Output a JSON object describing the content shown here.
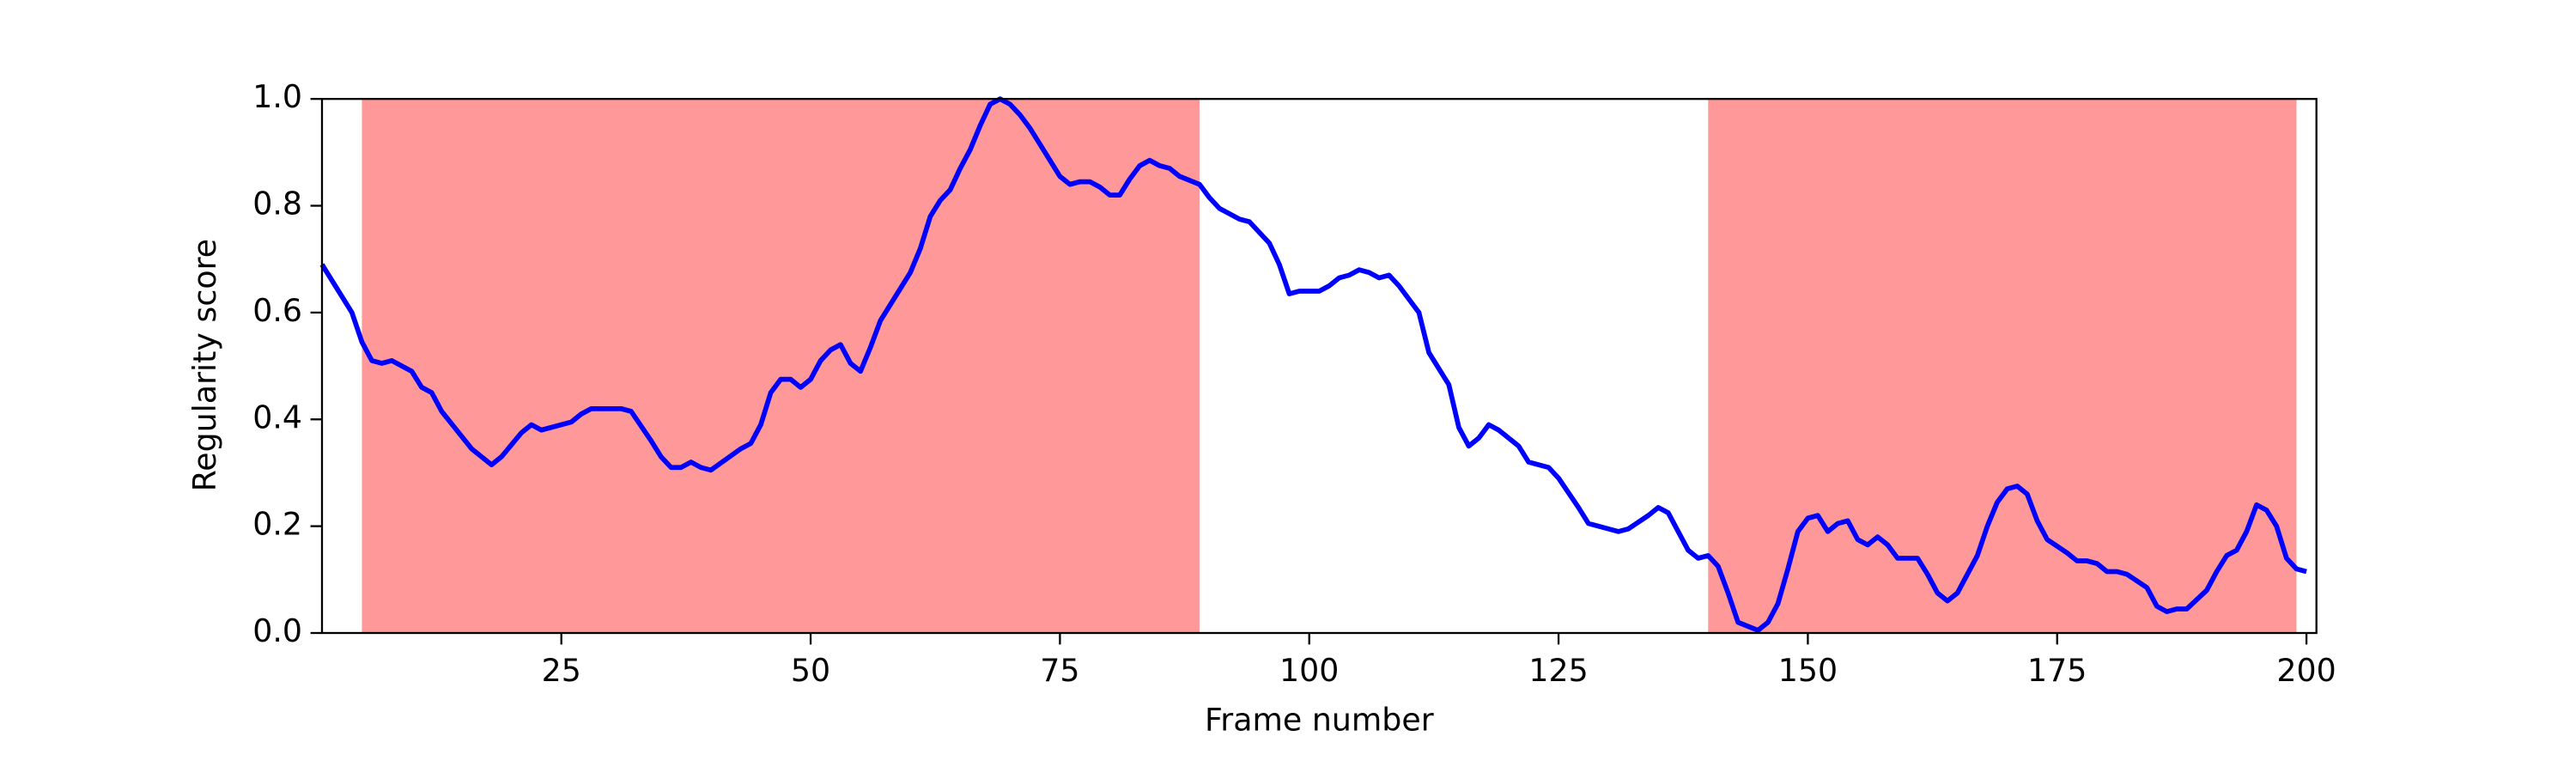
{
  "chart_data": {
    "type": "line",
    "xlabel": "Frame number",
    "ylabel": "Regularity score",
    "color": "#0000ff",
    "highlight_color": "#ff9999",
    "highlight_regions": [
      [
        5,
        89
      ],
      [
        140,
        199
      ]
    ],
    "xlim": [
      1,
      201
    ],
    "ylim": [
      0,
      1
    ],
    "xticks": [
      25,
      50,
      75,
      100,
      125,
      150,
      175,
      200
    ],
    "yticks": [
      {
        "value": 0,
        "label": "0.0"
      },
      0.2,
      0.4,
      0.6,
      0.8,
      {
        "value": 1,
        "label": "1.0"
      }
    ],
    "x": [
      1,
      4,
      5,
      6,
      7,
      8,
      10,
      11,
      12,
      13,
      16,
      18,
      19,
      21,
      22,
      23,
      26,
      27,
      28,
      30,
      31,
      32,
      34,
      35,
      36,
      37,
      38,
      39,
      40,
      43,
      44,
      45,
      46,
      47,
      48,
      49,
      50,
      51,
      52,
      53,
      54,
      55,
      56,
      57,
      59,
      60,
      61,
      62,
      63,
      64,
      65,
      66,
      67,
      68,
      69,
      70,
      71,
      72,
      73,
      74,
      75,
      76,
      77,
      78,
      79,
      80,
      81,
      82,
      83,
      84,
      85,
      86,
      87,
      89,
      90,
      91,
      92,
      93,
      94,
      96,
      97,
      98,
      99,
      101,
      102,
      103,
      104,
      105,
      106,
      107,
      108,
      109,
      111,
      112,
      114,
      115,
      116,
      117,
      118,
      119,
      121,
      122,
      123,
      124,
      125,
      127,
      128,
      130,
      131,
      132,
      134,
      135,
      136,
      137,
      138,
      139,
      140,
      141,
      142,
      143,
      145,
      146,
      147,
      148,
      149,
      150,
      151,
      152,
      153,
      154,
      155,
      156,
      157,
      158,
      159,
      161,
      162,
      163,
      164,
      165,
      167,
      168,
      169,
      170,
      171,
      172,
      173,
      174,
      176,
      177,
      178,
      179,
      180,
      181,
      182,
      184,
      185,
      186,
      187,
      188,
      190,
      191,
      192,
      193,
      194,
      195,
      196,
      197,
      198,
      199,
      200
    ],
    "values": [
      0.69,
      0.6,
      0.545,
      0.51,
      0.505,
      0.51,
      0.49,
      0.46,
      0.45,
      0.415,
      0.345,
      0.315,
      0.33,
      0.375,
      0.39,
      0.38,
      0.395,
      0.41,
      0.42,
      0.42,
      0.42,
      0.415,
      0.36,
      0.33,
      0.31,
      0.31,
      0.32,
      0.31,
      0.305,
      0.345,
      0.355,
      0.39,
      0.45,
      0.475,
      0.475,
      0.46,
      0.475,
      0.51,
      0.53,
      0.54,
      0.505,
      0.49,
      0.535,
      0.585,
      0.645,
      0.675,
      0.72,
      0.78,
      0.81,
      0.83,
      0.87,
      0.905,
      0.95,
      0.99,
      1.0,
      0.99,
      0.97,
      0.945,
      0.915,
      0.885,
      0.855,
      0.84,
      0.845,
      0.845,
      0.835,
      0.82,
      0.82,
      0.85,
      0.875,
      0.885,
      0.875,
      0.87,
      0.855,
      0.84,
      0.815,
      0.795,
      0.785,
      0.775,
      0.77,
      0.73,
      0.69,
      0.635,
      0.64,
      0.64,
      0.65,
      0.665,
      0.67,
      0.68,
      0.675,
      0.665,
      0.67,
      0.65,
      0.6,
      0.525,
      0.465,
      0.385,
      0.35,
      0.365,
      0.39,
      0.38,
      0.35,
      0.32,
      0.315,
      0.31,
      0.29,
      0.235,
      0.205,
      0.195,
      0.19,
      0.195,
      0.22,
      0.235,
      0.225,
      0.19,
      0.155,
      0.14,
      0.145,
      0.125,
      0.075,
      0.02,
      0.005,
      0.02,
      0.055,
      0.12,
      0.19,
      0.215,
      0.22,
      0.19,
      0.205,
      0.21,
      0.175,
      0.165,
      0.18,
      0.165,
      0.14,
      0.14,
      0.11,
      0.075,
      0.06,
      0.075,
      0.145,
      0.2,
      0.245,
      0.27,
      0.275,
      0.26,
      0.21,
      0.175,
      0.15,
      0.135,
      0.135,
      0.13,
      0.115,
      0.115,
      0.11,
      0.085,
      0.05,
      0.04,
      0.045,
      0.045,
      0.08,
      0.115,
      0.145,
      0.155,
      0.19,
      0.24,
      0.23,
      0.2,
      0.14,
      0.12,
      0.115
    ]
  }
}
